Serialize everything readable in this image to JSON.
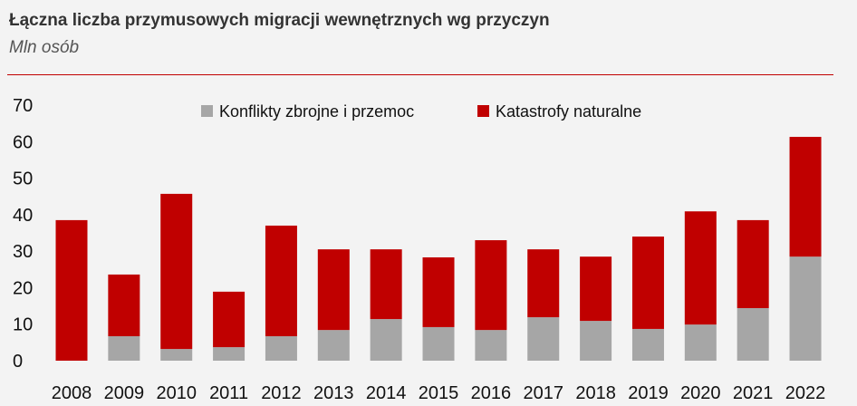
{
  "title": "Łączna liczba przymusowych migracji wewnętrznych wg przyczyn",
  "subtitle": "Mln osób",
  "chart_data": {
    "type": "bar",
    "stacked": true,
    "categories": [
      "2008",
      "2009",
      "2010",
      "2011",
      "2012",
      "2013",
      "2014",
      "2015",
      "2016",
      "2017",
      "2018",
      "2019",
      "2020",
      "2021",
      "2022"
    ],
    "series": [
      {
        "name": "Konflikty zbrojne i przemoc",
        "color": "#a6a6a6",
        "values": [
          0,
          6.7,
          3.2,
          3.7,
          6.7,
          8.4,
          11.4,
          9.2,
          8.4,
          11.9,
          10.9,
          8.7,
          9.9,
          14.4,
          28.5
        ]
      },
      {
        "name": "Katastrofy naturalne",
        "color": "#c00000",
        "values": [
          38.5,
          16.9,
          42.5,
          15.2,
          30.3,
          22.1,
          19.1,
          19.1,
          24.6,
          18.6,
          17.6,
          25.3,
          31.0,
          24.1,
          32.8
        ]
      }
    ],
    "ylim": [
      0,
      70
    ],
    "yticks": [
      "0",
      "10",
      "20",
      "30",
      "40",
      "50",
      "60",
      "70"
    ],
    "grid": false,
    "legend": "top-right"
  }
}
